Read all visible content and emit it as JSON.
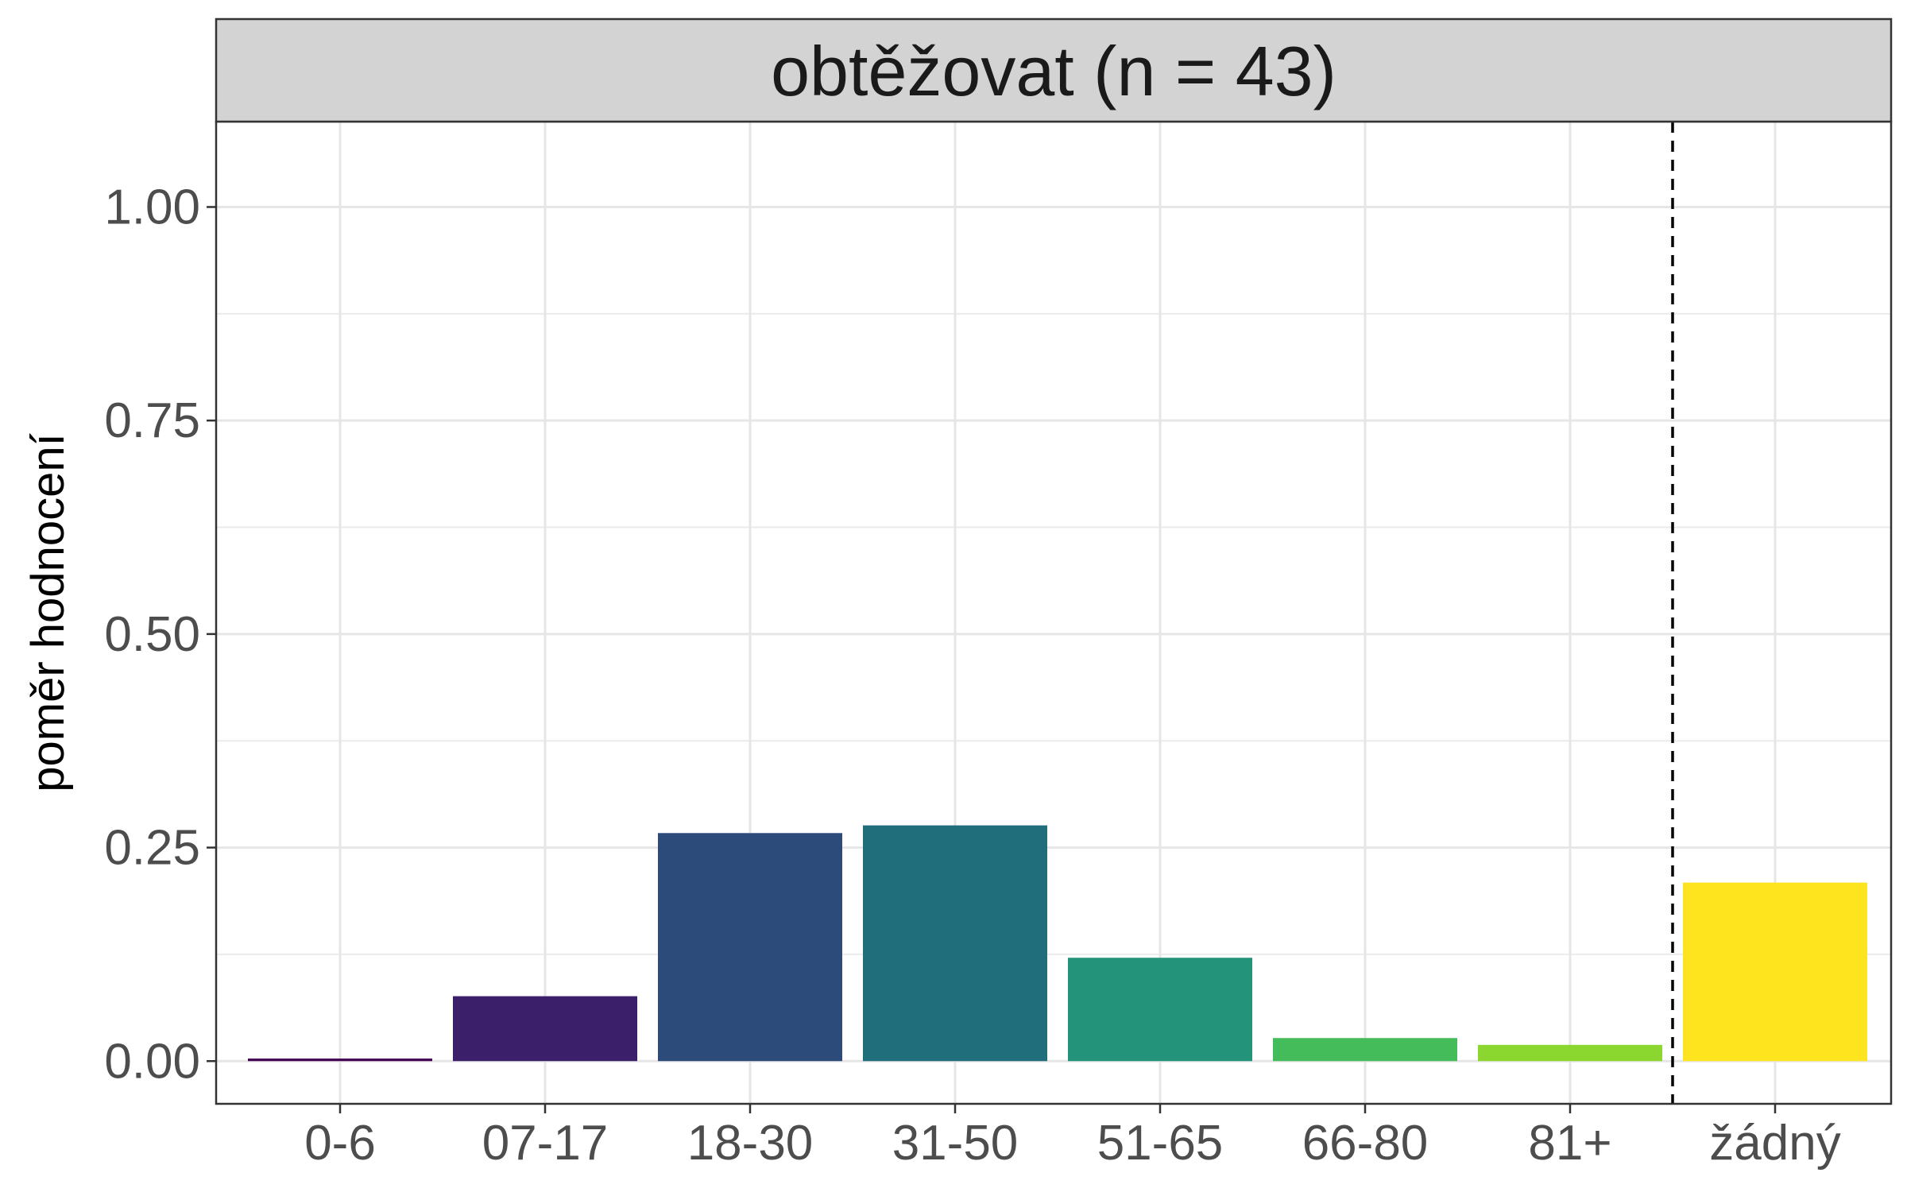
{
  "chart_data": {
    "type": "bar",
    "title": "obtěžovat (n = 43)",
    "xlabel": "",
    "ylabel": "poměr hodnocení",
    "categories": [
      "0-6",
      "07-17",
      "18-30",
      "31-50",
      "51-65",
      "66-80",
      "81+",
      "žádný"
    ],
    "values": [
      0.003,
      0.076,
      0.267,
      0.276,
      0.121,
      0.027,
      0.019,
      0.209
    ],
    "bar_colors": [
      "#440154",
      "#3B1F6B",
      "#2C4B7A",
      "#206E7C",
      "#23947A",
      "#44BC5A",
      "#8BD62F",
      "#FDE41F"
    ],
    "ylim": [
      -0.05,
      1.1
    ],
    "yticks": [
      0.0,
      0.25,
      0.5,
      0.75,
      1.0
    ],
    "ytick_labels": [
      "0.00",
      "0.25",
      "0.50",
      "0.75",
      "1.00"
    ],
    "reference_line": {
      "after_category": "81+",
      "style": "dashed"
    },
    "grid": true,
    "legend": "none"
  }
}
